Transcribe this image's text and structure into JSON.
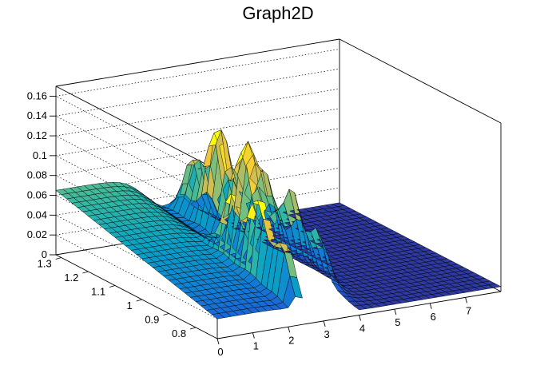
{
  "chart_data": {
    "type": "surface",
    "title": "Graph2D",
    "xlim": [
      0,
      8
    ],
    "ylim": [
      0.72,
      1.32
    ],
    "zlim": [
      0,
      0.17
    ],
    "x_ticks": [
      "0",
      "1",
      "2",
      "3",
      "4",
      "5",
      "6",
      "7"
    ],
    "y_ticks": [
      "0.8",
      "0.9",
      "1",
      "1.1",
      "1.2",
      "1.3"
    ],
    "z_ticks": [
      "0",
      "0.02",
      "0.04",
      "0.06",
      "0.08",
      "0.1",
      "0.12",
      "0.14",
      "0.16"
    ],
    "colormap": [
      "#352a87",
      "#1f5ad6",
      "#1180d3",
      "#09a2c6",
      "#32b7a4",
      "#7dbf7b",
      "#c1bc5c",
      "#f4c73a",
      "#f9fb0e"
    ],
    "grid": true,
    "surface_peaks": [
      {
        "x": 2.3,
        "y_from": 0.75,
        "y_to": 1.0,
        "z": 0.118
      },
      {
        "x": 3.5,
        "y_from": 1.0,
        "y_to": 1.28,
        "z": 0.12
      },
      {
        "x": 4.0,
        "y_from": 0.85,
        "y_to": 1.15,
        "z": 0.085
      }
    ],
    "plateau_z": 0.065,
    "baseline_z": 0.005
  }
}
